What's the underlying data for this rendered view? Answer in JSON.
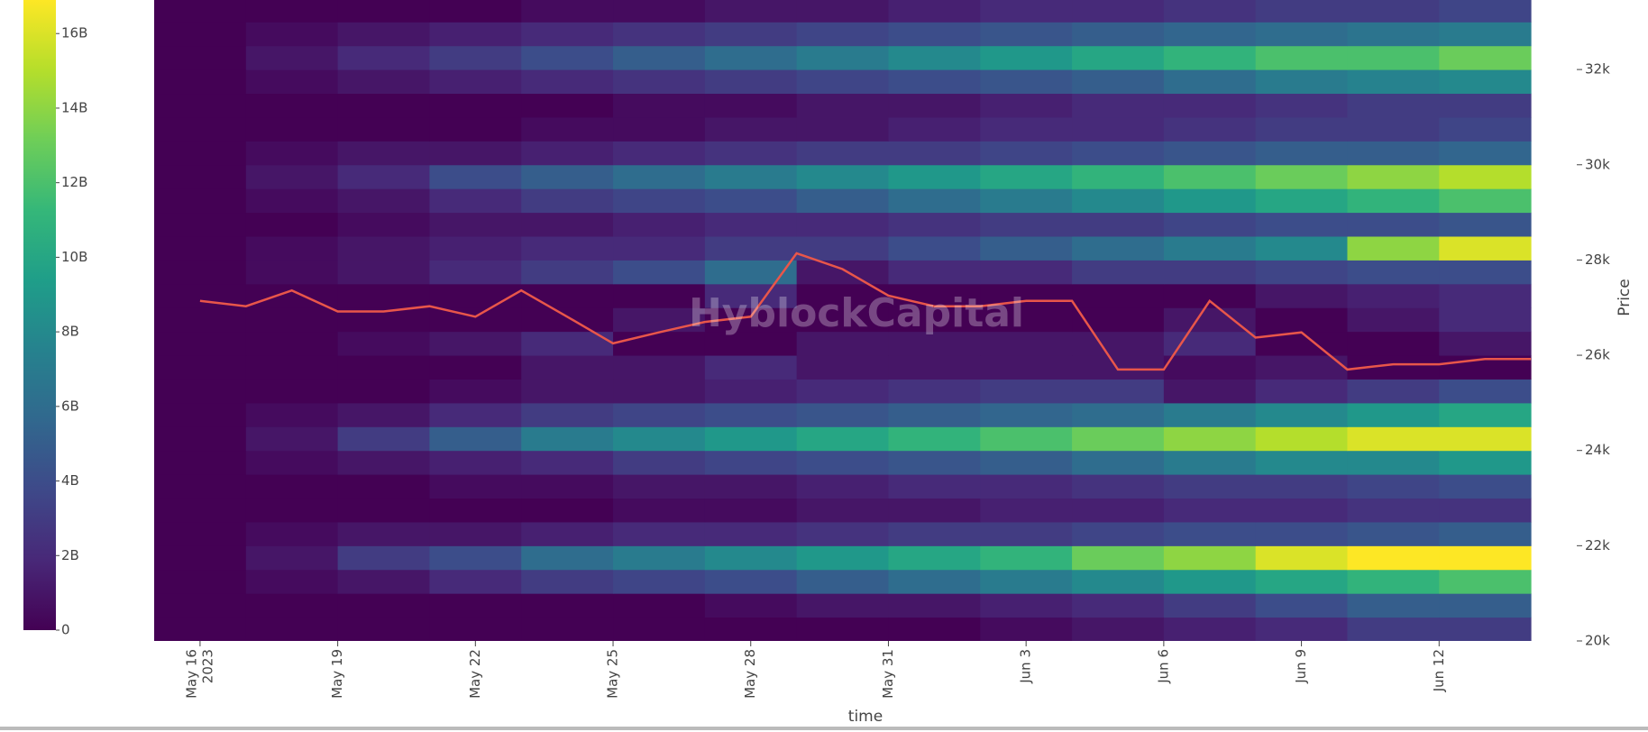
{
  "chart_data": {
    "type": "heatmap",
    "watermark": "HyblockCapital",
    "x_label": "time",
    "y_label": "Price",
    "xlim": [
      "2023-05-15",
      "2023-06-15"
    ],
    "ylim": [
      20000,
      33460
    ],
    "xticks": [
      {
        "value": "2023-05-16",
        "label": [
          "May 16",
          "2023"
        ]
      },
      {
        "value": "2023-05-19",
        "label": [
          "May 19"
        ]
      },
      {
        "value": "2023-05-22",
        "label": [
          "May 22"
        ]
      },
      {
        "value": "2023-05-25",
        "label": [
          "May 25"
        ]
      },
      {
        "value": "2023-05-28",
        "label": [
          "May 28"
        ]
      },
      {
        "value": "2023-05-31",
        "label": [
          "May 31"
        ]
      },
      {
        "value": "2023-06-03",
        "label": [
          "Jun 3"
        ]
      },
      {
        "value": "2023-06-06",
        "label": [
          "Jun 6"
        ]
      },
      {
        "value": "2023-06-09",
        "label": [
          "Jun 9"
        ]
      },
      {
        "value": "2023-06-12",
        "label": [
          "Jun 12"
        ]
      }
    ],
    "yticks": [
      {
        "value": 20000,
        "label": "20k"
      },
      {
        "value": 22000,
        "label": "22k"
      },
      {
        "value": 24000,
        "label": "24k"
      },
      {
        "value": 26000,
        "label": "26k"
      },
      {
        "value": 28000,
        "label": "28k"
      },
      {
        "value": 30000,
        "label": "30k"
      },
      {
        "value": 32000,
        "label": "32k"
      }
    ],
    "zlim": [
      0,
      16.9
    ],
    "zticks": [
      {
        "value": 0,
        "label": "0"
      },
      {
        "value": 2,
        "label": "2B"
      },
      {
        "value": 4,
        "label": "4B"
      },
      {
        "value": 6,
        "label": "6B"
      },
      {
        "value": 8,
        "label": "8B"
      },
      {
        "value": 10,
        "label": "10B"
      },
      {
        "value": 12,
        "label": "12B"
      },
      {
        "value": 14,
        "label": "14B"
      },
      {
        "value": 16,
        "label": "16B"
      }
    ],
    "colorscale": [
      "#440154",
      "#482878",
      "#3e4989",
      "#31688e",
      "#26828e",
      "#1f9e89",
      "#35b779",
      "#6ece58",
      "#b5de2b",
      "#fde725"
    ],
    "x_bins": [
      "2023-05-15",
      "2023-05-17",
      "2023-05-19",
      "2023-05-21",
      "2023-05-23",
      "2023-05-25",
      "2023-05-27",
      "2023-05-29",
      "2023-05-31",
      "2023-06-02",
      "2023-06-04",
      "2023-06-06",
      "2023-06-08",
      "2023-06-10",
      "2023-06-12",
      "2023-06-14"
    ],
    "y_bins": [
      20000,
      20500,
      21000,
      21500,
      22000,
      22500,
      23000,
      23500,
      24000,
      24500,
      25000,
      25500,
      26000,
      26500,
      27000,
      27500,
      28000,
      28500,
      29000,
      29500,
      30000,
      30500,
      31000,
      31500,
      32000,
      32500,
      33000,
      33500
    ],
    "z": [
      [
        0,
        0,
        0,
        0,
        0,
        0,
        0,
        0,
        0,
        0.5,
        1,
        1.5,
        2,
        3,
        3
      ],
      [
        0,
        0,
        0,
        0,
        0,
        0,
        0.5,
        1,
        1,
        1.5,
        2,
        3,
        4,
        5,
        5
      ],
      [
        0,
        0.5,
        1,
        2,
        3,
        3.5,
        4,
        5,
        6,
        7,
        8,
        9,
        10,
        11,
        12
      ],
      [
        0,
        1,
        3,
        4,
        6,
        7,
        8,
        9,
        10,
        11,
        13,
        14,
        16,
        17,
        17
      ],
      [
        0,
        0.5,
        1,
        1,
        1.5,
        2,
        2,
        2.5,
        3,
        3,
        3.5,
        4,
        4,
        4.5,
        5
      ],
      [
        0,
        0,
        0,
        0,
        0,
        0.5,
        0.5,
        1,
        1,
        1.5,
        1.5,
        2,
        2,
        2.5,
        2.5
      ],
      [
        0,
        0,
        0,
        0.5,
        0.5,
        1,
        1,
        1.5,
        2,
        2,
        2.5,
        3,
        3,
        3.5,
        4
      ],
      [
        0,
        0.5,
        1,
        1.5,
        2,
        3,
        3.5,
        4,
        4.5,
        5,
        6,
        7,
        8,
        8,
        9
      ],
      [
        0,
        1,
        3,
        5,
        7,
        8,
        9,
        10,
        11,
        12,
        13,
        14,
        15,
        16,
        16
      ],
      [
        0,
        0.5,
        1,
        2,
        3,
        3.5,
        4,
        4.5,
        5,
        5.5,
        6,
        7,
        8,
        9,
        10
      ],
      [
        0,
        0,
        0,
        0.5,
        1,
        1,
        1.5,
        2,
        2.5,
        3,
        3,
        1,
        2,
        3,
        4
      ],
      [
        0,
        0,
        0,
        0,
        1,
        1,
        2,
        1,
        1,
        1,
        1,
        0.5,
        1,
        0,
        0
      ],
      [
        0,
        0,
        0.5,
        1,
        2,
        0,
        0,
        1,
        1,
        1,
        1,
        2,
        0,
        0,
        1
      ],
      [
        0,
        0,
        0,
        0,
        0,
        1,
        0,
        0,
        0,
        0,
        0,
        1,
        0,
        1,
        2
      ],
      [
        0,
        0,
        0,
        0,
        0,
        0,
        2,
        0,
        0,
        0,
        0,
        0,
        1,
        1.5,
        2
      ],
      [
        0,
        0.5,
        1,
        2,
        3,
        4,
        6,
        1,
        2,
        2,
        3,
        3,
        3.5,
        4,
        4
      ],
      [
        0,
        0.5,
        1,
        1.5,
        2,
        2,
        3,
        3,
        4,
        5,
        6,
        7,
        8,
        14,
        16
      ],
      [
        0,
        0,
        0.5,
        1,
        1,
        1.5,
        2,
        2,
        2.5,
        3,
        3,
        3.5,
        4,
        4,
        4.5
      ],
      [
        0,
        0.5,
        1,
        2,
        3,
        3.5,
        4,
        5,
        6,
        7,
        8,
        9,
        10,
        11,
        12
      ],
      [
        0,
        1,
        2,
        4,
        5,
        6,
        7,
        8,
        9,
        10,
        11,
        12,
        13,
        14,
        15
      ],
      [
        0,
        0.5,
        1,
        1,
        1.5,
        2,
        2.5,
        3,
        3,
        3.5,
        4,
        4.5,
        5,
        5,
        5.5
      ],
      [
        0,
        0,
        0,
        0,
        0.5,
        0.5,
        1,
        1,
        1.5,
        2,
        2,
        2.5,
        3,
        3,
        3.5
      ],
      [
        0,
        0,
        0,
        0,
        0,
        0.5,
        0.5,
        1,
        1,
        1.5,
        2,
        2,
        2.5,
        3,
        3
      ],
      [
        0,
        0.5,
        1,
        1.5,
        2,
        2.5,
        3,
        3.5,
        4,
        4.5,
        5,
        6,
        7,
        7.5,
        8
      ],
      [
        0,
        1,
        2,
        3,
        4,
        5,
        6,
        7,
        8,
        9,
        10,
        11,
        12,
        12,
        13
      ],
      [
        0,
        0.5,
        1,
        1.5,
        2,
        2.5,
        3,
        3.5,
        4,
        4.5,
        5,
        5.5,
        6,
        6.5,
        7
      ],
      [
        0,
        0,
        0,
        0,
        0.5,
        0.5,
        1,
        1,
        1.5,
        2,
        2,
        2.5,
        3,
        3,
        3.5
      ]
    ],
    "price": {
      "color": "#e8564a",
      "x": [
        "2023-05-16",
        "2023-05-17",
        "2023-05-18",
        "2023-05-19",
        "2023-05-20",
        "2023-05-21",
        "2023-05-22",
        "2023-05-23",
        "2023-05-24",
        "2023-05-25",
        "2023-05-26",
        "2023-05-27",
        "2023-05-28",
        "2023-05-29",
        "2023-05-30",
        "2023-05-31",
        "2023-06-01",
        "2023-06-02",
        "2023-06-03",
        "2023-06-04",
        "2023-06-05",
        "2023-06-06",
        "2023-06-07",
        "2023-06-08",
        "2023-06-09",
        "2023-06-10",
        "2023-06-11",
        "2023-06-12",
        "2023-06-13",
        "2023-06-14"
      ],
      "values": [
        27140,
        27030,
        27360,
        26920,
        26920,
        27030,
        26810,
        27360,
        26810,
        26250,
        26480,
        26700,
        26810,
        28140,
        27810,
        27250,
        27030,
        27030,
        27140,
        27140,
        25700,
        25700,
        27140,
        26370,
        26480,
        25700,
        25810,
        25810,
        25920,
        25920
      ]
    }
  }
}
